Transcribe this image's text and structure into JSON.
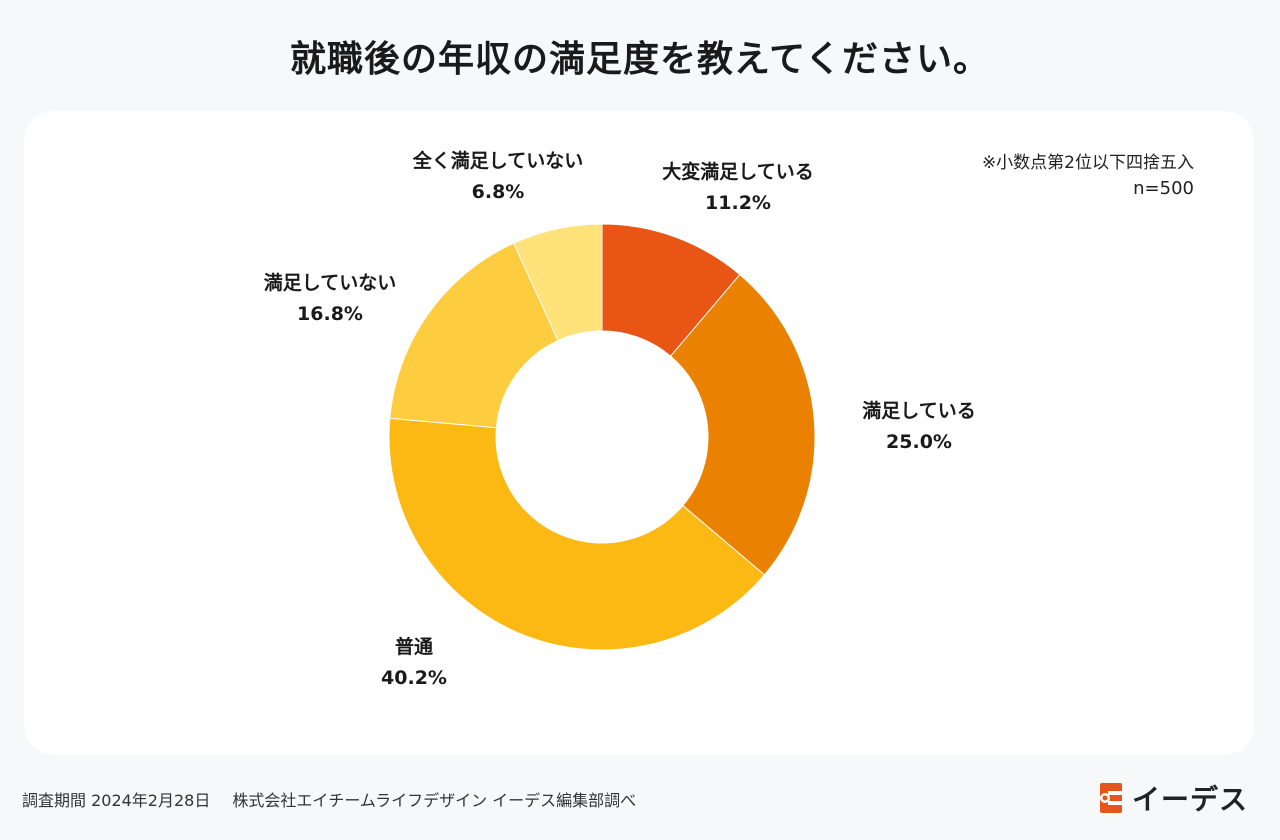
{
  "title": "就職後の年収の満足度を教えてください。",
  "note": {
    "rounding": "※小数点第2位以下四捨五入",
    "sample": "n=500"
  },
  "footer": {
    "period": "調査期間 2024年2月28日",
    "source": "株式会社エイチームライフデザイン イーデス編集部調べ"
  },
  "logo": {
    "text": "イーデス",
    "icon": "edeas-logo-icon"
  },
  "chart_data": {
    "type": "pie",
    "donut": true,
    "title": "就職後の年収の満足度を教えてください。",
    "slices": [
      {
        "label": "大変満足している",
        "value": 11.2,
        "display": "11.2%",
        "color": "#e85514"
      },
      {
        "label": "満足している",
        "value": 25.0,
        "display": "25.0%",
        "color": "#ea8100"
      },
      {
        "label": "普通",
        "value": 40.2,
        "display": "40.2%",
        "color": "#fdb913"
      },
      {
        "label": "満足していない",
        "value": 16.8,
        "display": "16.8%",
        "color": "#fdcd3f"
      },
      {
        "label": "全く満足していない",
        "value": 6.8,
        "display": "6.8%",
        "color": "#ffe27a"
      }
    ]
  }
}
